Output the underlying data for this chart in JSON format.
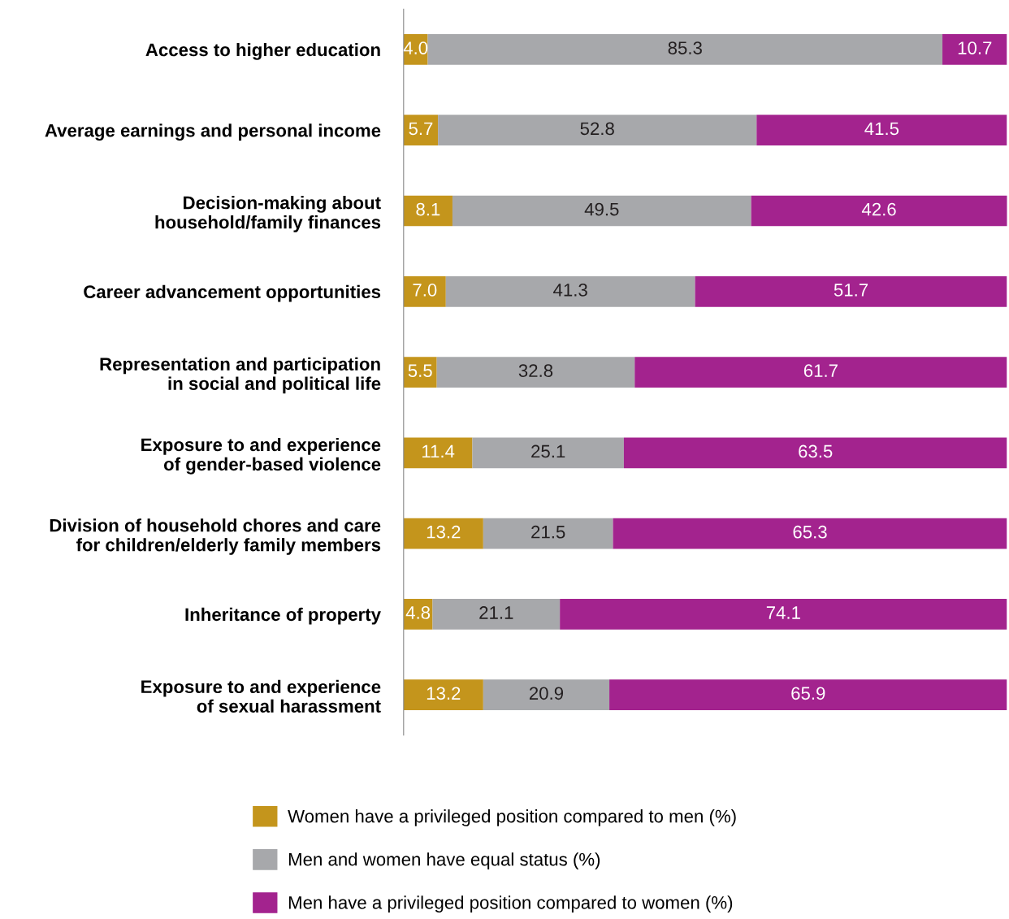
{
  "chart_data": {
    "type": "bar",
    "orientation": "horizontal",
    "stacked": true,
    "categories": [
      "Access to higher education",
      "Average earnings and personal income",
      "Decision-making about\nhousehold/family finances",
      "Career advancement opportunities",
      "Representation and participation\nin social and political life",
      "Exposure to and experience\nof gender-based violence",
      "Division of household chores and care\nfor children/elderly family members",
      "Inheritance of property",
      "Exposure to and experience\nof sexual harassment"
    ],
    "series": [
      {
        "name": "Women have a privileged position compared to men (%)",
        "color": "#c4951c",
        "values": [
          4.0,
          5.7,
          8.1,
          7.0,
          5.5,
          11.4,
          13.2,
          4.8,
          13.2
        ],
        "value_labels": [
          "4.0",
          "5.7",
          "8.1",
          "7.0",
          "5.5",
          "11.4",
          "13.2",
          "4.8",
          "13.2"
        ]
      },
      {
        "name": "Men and women have equal status (%)",
        "color": "#a7a8ab",
        "values": [
          85.3,
          52.8,
          49.5,
          41.3,
          32.8,
          25.1,
          21.5,
          21.1,
          20.9
        ],
        "value_labels": [
          "85.3",
          "52.8",
          "49.5",
          "41.3",
          "32.8",
          "25.1",
          "21.5",
          "21.1",
          "20.9"
        ]
      },
      {
        "name": "Men have a privileged position compared to women (%)",
        "color": "#a3238e",
        "values": [
          10.7,
          41.5,
          42.6,
          51.7,
          61.7,
          63.5,
          65.3,
          74.1,
          65.9
        ],
        "value_labels": [
          "10.7",
          "41.5",
          "42.6",
          "51.7",
          "61.7",
          "63.5",
          "65.3",
          "74.1",
          "65.9"
        ]
      }
    ],
    "xlim": [
      0,
      100
    ],
    "tick_labels": "y",
    "grid": false,
    "legend": "bottom"
  }
}
